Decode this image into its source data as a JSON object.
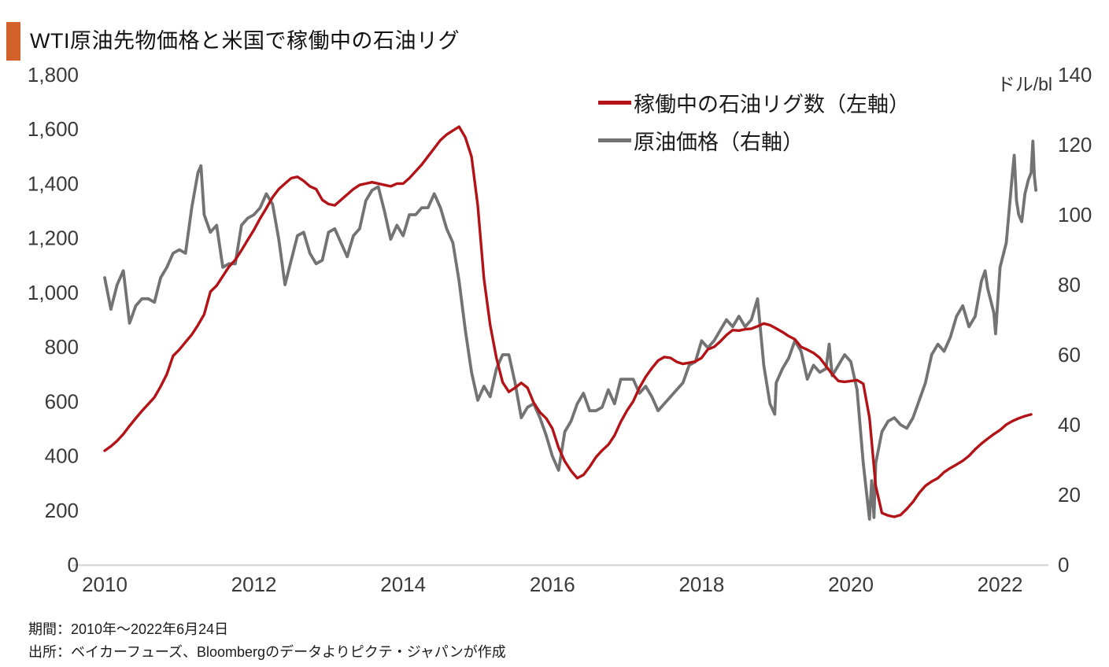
{
  "title": "WTI原油先物価格と米国で稼働中の石油リグ",
  "accent_color": "#d2622a",
  "footer": {
    "period": "期間：2010年～2022年6月24日",
    "source": "出所：ベイカーフューズ、Bloombergのデータよりピクテ・ジャパンが作成"
  },
  "chart_data": {
    "type": "line",
    "title": "WTI原油先物価格と米国で稼働中の石油リグ",
    "grid": false,
    "legend_position": "top-right-inside",
    "background": "#ffffff",
    "axis_line_color": "#d9d9d9",
    "x_axis": {
      "range": [
        2010,
        2022.62
      ],
      "ticks": [
        2010,
        2012,
        2014,
        2016,
        2018,
        2020,
        2022
      ],
      "tick_labels": [
        "2010",
        "2012",
        "2014",
        "2016",
        "2018",
        "2020",
        "2022"
      ]
    },
    "left_axis": {
      "range": [
        0,
        1800
      ],
      "ticks": [
        0,
        200,
        400,
        600,
        800,
        1000,
        1200,
        1400,
        1600,
        1800
      ],
      "tick_labels": [
        "0",
        "200",
        "400",
        "600",
        "800",
        "1,000",
        "1,200",
        "1,400",
        "1,600",
        "1,800"
      ]
    },
    "right_axis": {
      "range": [
        0,
        140
      ],
      "ticks": [
        0,
        20,
        40,
        60,
        80,
        100,
        120,
        140
      ],
      "tick_labels": [
        "0",
        "20",
        "40",
        "60",
        "80",
        "100",
        "120",
        "140"
      ],
      "label": "ドル/bl"
    },
    "series": [
      {
        "name": "原油価格（右軸）",
        "axis": "right",
        "color": "#737373",
        "width": 3.8,
        "start_year": 2010,
        "points_per_year": 12,
        "values": [
          82,
          73,
          80,
          84,
          69,
          74,
          76,
          76,
          75,
          82,
          85,
          89,
          90,
          89,
          102,
          112,
          100,
          95,
          97,
          85,
          86,
          86,
          97,
          99,
          100,
          102,
          106,
          103,
          93,
          80,
          87,
          94,
          95,
          89,
          86,
          87,
          95,
          96,
          92,
          88,
          94,
          96,
          104,
          107,
          108,
          101,
          93,
          97,
          94,
          100,
          100,
          102,
          102,
          106,
          102,
          96,
          92,
          81,
          67,
          55,
          47,
          51,
          48,
          56,
          60,
          60,
          52,
          42,
          45,
          46,
          42,
          37,
          31,
          27,
          38,
          41,
          46,
          49,
          44,
          44,
          45,
          50,
          46,
          53,
          53,
          53,
          49,
          51,
          48,
          44,
          46,
          48,
          50,
          52,
          57,
          58,
          64,
          62,
          64,
          67,
          70,
          68,
          71,
          68,
          70,
          76,
          57,
          46,
          52,
          56,
          59,
          64,
          61,
          53,
          57,
          55,
          56,
          54,
          57,
          60,
          58,
          50,
          29,
          13,
          29,
          38,
          41,
          42,
          40,
          39,
          42,
          47,
          52,
          60,
          63,
          61,
          65,
          71,
          74,
          68,
          71,
          81,
          79,
          72,
          85,
          92,
          112,
          100,
          106,
          112
        ],
        "extra_points": [
          [
            2011.29,
            114
          ],
          [
            2018.98,
            43
          ],
          [
            2019.71,
            63
          ],
          [
            2020.28,
            24
          ],
          [
            2020.31,
            13.5
          ],
          [
            2021.8,
            84
          ],
          [
            2021.94,
            66
          ],
          [
            2022.19,
            117
          ],
          [
            2022.22,
            104
          ],
          [
            2022.29,
            98
          ],
          [
            2022.38,
            110
          ],
          [
            2022.44,
            121
          ],
          [
            2022.46,
            111
          ],
          [
            2022.48,
            107
          ]
        ]
      },
      {
        "name": "稼働中の石油リグ数（左軸）",
        "axis": "left",
        "color": "#b31317",
        "width": 3.4,
        "start_year": 2010,
        "points_per_year": 12,
        "values": [
          419,
          435,
          455,
          480,
          510,
          538,
          565,
          590,
          615,
          655,
          700,
          767,
          790,
          818,
          845,
          880,
          920,
          1003,
          1025,
          1060,
          1095,
          1120,
          1155,
          1193,
          1230,
          1272,
          1310,
          1350,
          1380,
          1400,
          1420,
          1425,
          1410,
          1390,
          1380,
          1340,
          1325,
          1320,
          1340,
          1360,
          1380,
          1395,
          1400,
          1405,
          1400,
          1395,
          1390,
          1400,
          1400,
          1420,
          1445,
          1470,
          1500,
          1530,
          1560,
          1580,
          1595,
          1609,
          1570,
          1499,
          1320,
          1050,
          880,
          760,
          670,
          635,
          650,
          668,
          650,
          595,
          560,
          538,
          500,
          430,
          380,
          345,
          318,
          330,
          360,
          395,
          420,
          441,
          475,
          525,
          566,
          600,
          650,
          690,
          722,
          750,
          763,
          760,
          745,
          738,
          742,
          747,
          760,
          791,
          800,
          820,
          844,
          862,
          860,
          865,
          867,
          876,
          886,
          880,
          868,
          855,
          840,
          828,
          800,
          790,
          778,
          760,
          730,
          700,
          675,
          672,
          675,
          678,
          665,
          540,
          290,
          190,
          181,
          176,
          183,
          205,
          231,
          264,
          290,
          306,
          318,
          340,
          355,
          368,
          382,
          400,
          424,
          445,
          463,
          480,
          495,
          515,
          528,
          538,
          546,
          552
        ],
        "extra_points": []
      }
    ],
    "legend_order": [
      1,
      0
    ]
  }
}
